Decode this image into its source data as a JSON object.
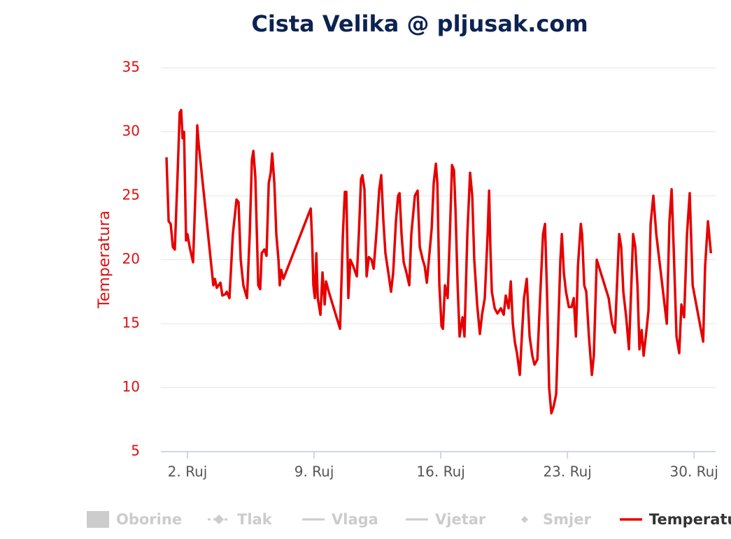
{
  "chart_data": {
    "type": "line",
    "title": "Cista Velika @ pljusak.com",
    "ylabel": "Temperatura",
    "xlim": [
      0.53,
      31.19
    ],
    "xticks": [
      {
        "value": 2,
        "label": "2. Ruj"
      },
      {
        "value": 9,
        "label": "9. Ruj"
      },
      {
        "value": 16,
        "label": "16. Ruj"
      },
      {
        "value": 23,
        "label": "23. Ruj"
      },
      {
        "value": 30,
        "label": "30. Ruj"
      }
    ],
    "ylim": [
      5,
      35
    ],
    "yticks": [
      5,
      10,
      15,
      20,
      25,
      30,
      35
    ],
    "grid": true,
    "hidden_legend": [
      "Oborine",
      "Tlak",
      "Vlaga",
      "Vjetar",
      "Smjer"
    ],
    "x": [
      0.84,
      0.96,
      1.07,
      1.19,
      1.3,
      1.46,
      1.57,
      1.65,
      1.73,
      1.81,
      1.92,
      2.0,
      2.12,
      2.31,
      2.46,
      2.54,
      2.62,
      3.43,
      3.51,
      3.62,
      3.82,
      3.93,
      4.09,
      4.17,
      4.32,
      4.51,
      4.71,
      4.82,
      4.94,
      5.09,
      5.29,
      5.44,
      5.56,
      5.64,
      5.75,
      5.91,
      6.02,
      6.1,
      6.25,
      6.37,
      6.49,
      6.6,
      6.68,
      6.8,
      6.91,
      7.03,
      7.1,
      7.18,
      7.3,
      8.81,
      8.89,
      8.96,
      9.04,
      9.12,
      9.2,
      9.35,
      9.46,
      9.58,
      9.66,
      9.81,
      10.43,
      10.59,
      10.7,
      10.78,
      10.89,
      11.0,
      11.16,
      11.36,
      11.47,
      11.59,
      11.67,
      11.78,
      11.9,
      12.02,
      12.17,
      12.29,
      12.44,
      12.6,
      12.71,
      12.83,
      12.94,
      13.1,
      13.25,
      13.37,
      13.52,
      13.64,
      13.72,
      13.83,
      13.95,
      14.1,
      14.26,
      14.37,
      14.57,
      14.72,
      14.84,
      15.0,
      15.11,
      15.23,
      15.34,
      15.5,
      15.61,
      15.73,
      15.81,
      15.92,
      16.04,
      16.12,
      16.23,
      16.38,
      16.5,
      16.62,
      16.73,
      16.81,
      16.93,
      17.04,
      17.2,
      17.31,
      17.47,
      17.62,
      17.74,
      17.85,
      18.01,
      18.16,
      18.28,
      18.43,
      18.59,
      18.67,
      18.74,
      18.82,
      18.98,
      19.13,
      19.32,
      19.48,
      19.59,
      19.75,
      19.87,
      19.98,
      20.1,
      20.21,
      20.37,
      20.48,
      20.6,
      20.75,
      20.91,
      21.06,
      21.18,
      21.34,
      21.49,
      21.65,
      21.76,
      21.88,
      21.99,
      22.11,
      22.23,
      22.38,
      22.5,
      22.61,
      22.69,
      22.8,
      22.92,
      23.08,
      23.23,
      23.35,
      23.47,
      23.58,
      23.74,
      23.81,
      23.93,
      24.04,
      24.19,
      24.35,
      24.46,
      24.62,
      25.28,
      25.47,
      25.63,
      25.74,
      25.86,
      25.97,
      26.09,
      26.25,
      26.4,
      26.52,
      26.63,
      26.75,
      26.87,
      26.98,
      27.1,
      27.21,
      27.37,
      27.48,
      27.6,
      27.75,
      27.91,
      28.49,
      28.64,
      28.76,
      28.87,
      29.03,
      29.18,
      29.3,
      29.45,
      29.61,
      29.76,
      29.92,
      30.5,
      30.61,
      30.77,
      30.93
    ],
    "series": [
      {
        "name": "Temperatura",
        "color": "#e60000",
        "values": [
          28,
          23,
          22.8,
          21,
          20.8,
          27,
          31.5,
          31.7,
          29.5,
          30,
          21.5,
          22,
          21,
          19.8,
          26,
          30.5,
          29,
          18,
          18.5,
          17.8,
          18.2,
          17.2,
          17.3,
          17.5,
          17,
          22,
          24.7,
          24.5,
          20,
          18,
          17,
          22,
          27.8,
          28.5,
          26.5,
          18,
          17.7,
          20.5,
          20.8,
          20.3,
          26,
          26.8,
          28.3,
          26,
          22,
          20,
          18,
          19.2,
          18.5,
          24,
          21.5,
          18,
          17,
          20.5,
          17,
          15.7,
          19,
          16.5,
          18.3,
          17.5,
          14.6,
          22,
          25.3,
          25.3,
          17,
          20,
          19.5,
          18.7,
          22,
          26.3,
          26.6,
          25.5,
          18.7,
          20.2,
          20,
          19.3,
          22,
          25.5,
          26.6,
          23,
          20.5,
          19,
          17.5,
          19,
          23,
          25,
          25.2,
          22,
          19.8,
          19,
          18,
          22,
          25,
          25.4,
          21,
          20,
          19.5,
          18.2,
          20,
          22.5,
          26,
          27.5,
          26,
          18,
          14.8,
          14.6,
          18,
          17,
          22,
          27.4,
          27,
          24,
          18,
          14,
          15.5,
          14,
          22,
          26.8,
          25,
          20,
          16.5,
          14.2,
          15.7,
          17,
          22,
          25.4,
          21,
          17.5,
          16.2,
          15.8,
          16.2,
          15.7,
          17.2,
          16.2,
          18.3,
          15,
          13.5,
          12.7,
          11,
          14,
          17,
          18.5,
          14,
          12.5,
          11.8,
          12.2,
          17,
          22,
          22.8,
          17,
          10,
          8,
          8.5,
          9.5,
          15,
          20,
          22,
          19,
          17.5,
          16.3,
          16.3,
          17,
          14,
          19.5,
          22.8,
          22,
          18,
          17.5,
          14,
          11,
          12.5,
          20,
          17,
          15,
          14.3,
          18,
          22,
          21,
          17.5,
          15.5,
          13,
          17.5,
          22,
          21,
          18,
          13,
          14.5,
          12.5,
          14.5,
          16,
          22.8,
          25,
          22,
          15,
          23,
          25.5,
          21,
          14,
          12.7,
          16.5,
          15.5,
          22,
          25.2,
          18,
          13.6,
          19.5,
          23,
          20.5
        ]
      }
    ]
  }
}
